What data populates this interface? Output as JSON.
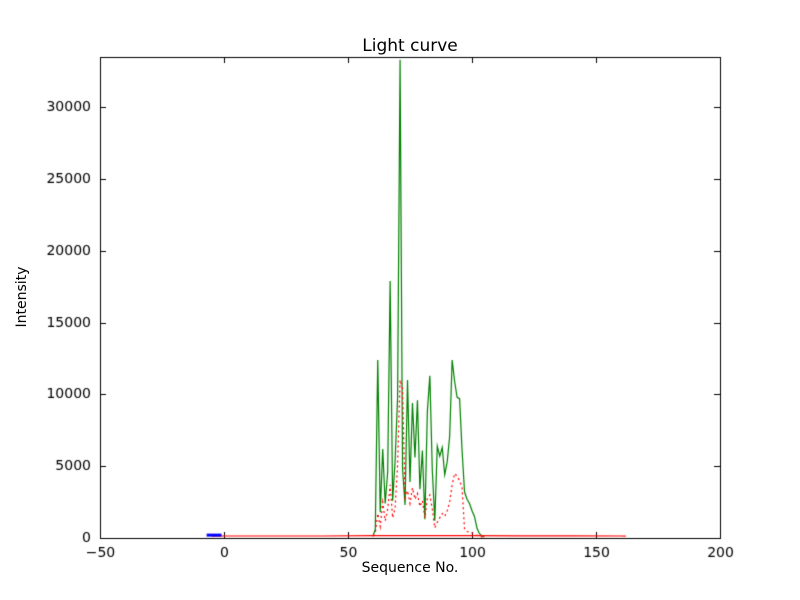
{
  "figure": {
    "background": "#ffffff",
    "frame_color": "#000000"
  },
  "chart_data": {
    "type": "line",
    "title": "Light curve",
    "xlabel": "Sequence No.",
    "ylabel": "Intensity",
    "xlim": [
      -50,
      200
    ],
    "ylim": [
      0,
      33500
    ],
    "grid": false,
    "legend_position": "none",
    "xticks": [
      {
        "v": -50,
        "label": "−50"
      },
      {
        "v": 0,
        "label": "0"
      },
      {
        "v": 50,
        "label": "50"
      },
      {
        "v": 100,
        "label": "100"
      },
      {
        "v": 150,
        "label": "150"
      },
      {
        "v": 200,
        "label": "200"
      }
    ],
    "yticks": [
      {
        "v": 0,
        "label": "0"
      },
      {
        "v": 5000,
        "label": "5000"
      },
      {
        "v": 10000,
        "label": "10000"
      },
      {
        "v": 15000,
        "label": "15000"
      },
      {
        "v": 20000,
        "label": "20000"
      },
      {
        "v": 25000,
        "label": "25000"
      },
      {
        "v": 30000,
        "label": "30000"
      }
    ],
    "series": [
      {
        "name": "intensity-green-solid",
        "color": "#008000",
        "style": "solid",
        "width": 1.2,
        "x": [
          60,
          61,
          62,
          63,
          64,
          65,
          66,
          67,
          68,
          69,
          70,
          71,
          72,
          73,
          74,
          75,
          76,
          77,
          78,
          79,
          80,
          81,
          82,
          83,
          84,
          85,
          86,
          87,
          88,
          89,
          90,
          91,
          92,
          93,
          94,
          95,
          96,
          97,
          98,
          99,
          100,
          101,
          102,
          103,
          104,
          105
        ],
        "y": [
          100,
          600,
          12400,
          1800,
          6200,
          2400,
          4600,
          17900,
          2600,
          5400,
          9800,
          33300,
          4800,
          2300,
          11000,
          3900,
          9400,
          5600,
          9600,
          3400,
          6100,
          1300,
          8800,
          11300,
          4700,
          1200,
          6400,
          5700,
          6300,
          4400,
          5300,
          7100,
          12400,
          10900,
          9800,
          9700,
          6100,
          3200,
          2700,
          2400,
          1900,
          1500,
          700,
          300,
          150,
          80
        ]
      },
      {
        "name": "intensity-red-dotted",
        "color": "#ff0000",
        "style": "dotted",
        "width": 1.2,
        "x": [
          60,
          61,
          62,
          63,
          64,
          65,
          66,
          67,
          68,
          69,
          70,
          71,
          72,
          73,
          74,
          75,
          76,
          77,
          78,
          79,
          80,
          81,
          82,
          83,
          84,
          85,
          86,
          87,
          88,
          89,
          90,
          91,
          92,
          93,
          94,
          95,
          96,
          97,
          98,
          99,
          100,
          101,
          102,
          103,
          104,
          105
        ],
        "y": [
          150,
          350,
          1700,
          800,
          2500,
          1200,
          2000,
          3700,
          1400,
          2100,
          5100,
          11000,
          10400,
          2800,
          3300,
          2400,
          3500,
          2700,
          3100,
          2200,
          2600,
          1400,
          2800,
          3000,
          2000,
          700,
          1100,
          1400,
          1700,
          1500,
          1900,
          2500,
          3700,
          4500,
          4300,
          4000,
          3500,
          600,
          450,
          400,
          350,
          250,
          180,
          120,
          80,
          40
        ]
      },
      {
        "name": "baseline-red-solid",
        "color": "#ff0000",
        "style": "solid",
        "width": 1.2,
        "x": [
          -5,
          0,
          20,
          40,
          60,
          80,
          100,
          120,
          140,
          160,
          162
        ],
        "y": [
          130,
          140,
          140,
          140,
          160,
          170,
          170,
          150,
          150,
          140,
          130
        ]
      },
      {
        "name": "marker-blue-solid",
        "color": "#0000ff",
        "style": "solid",
        "width": 3,
        "x": [
          -7,
          -1
        ],
        "y": [
          200,
          200
        ]
      }
    ]
  }
}
